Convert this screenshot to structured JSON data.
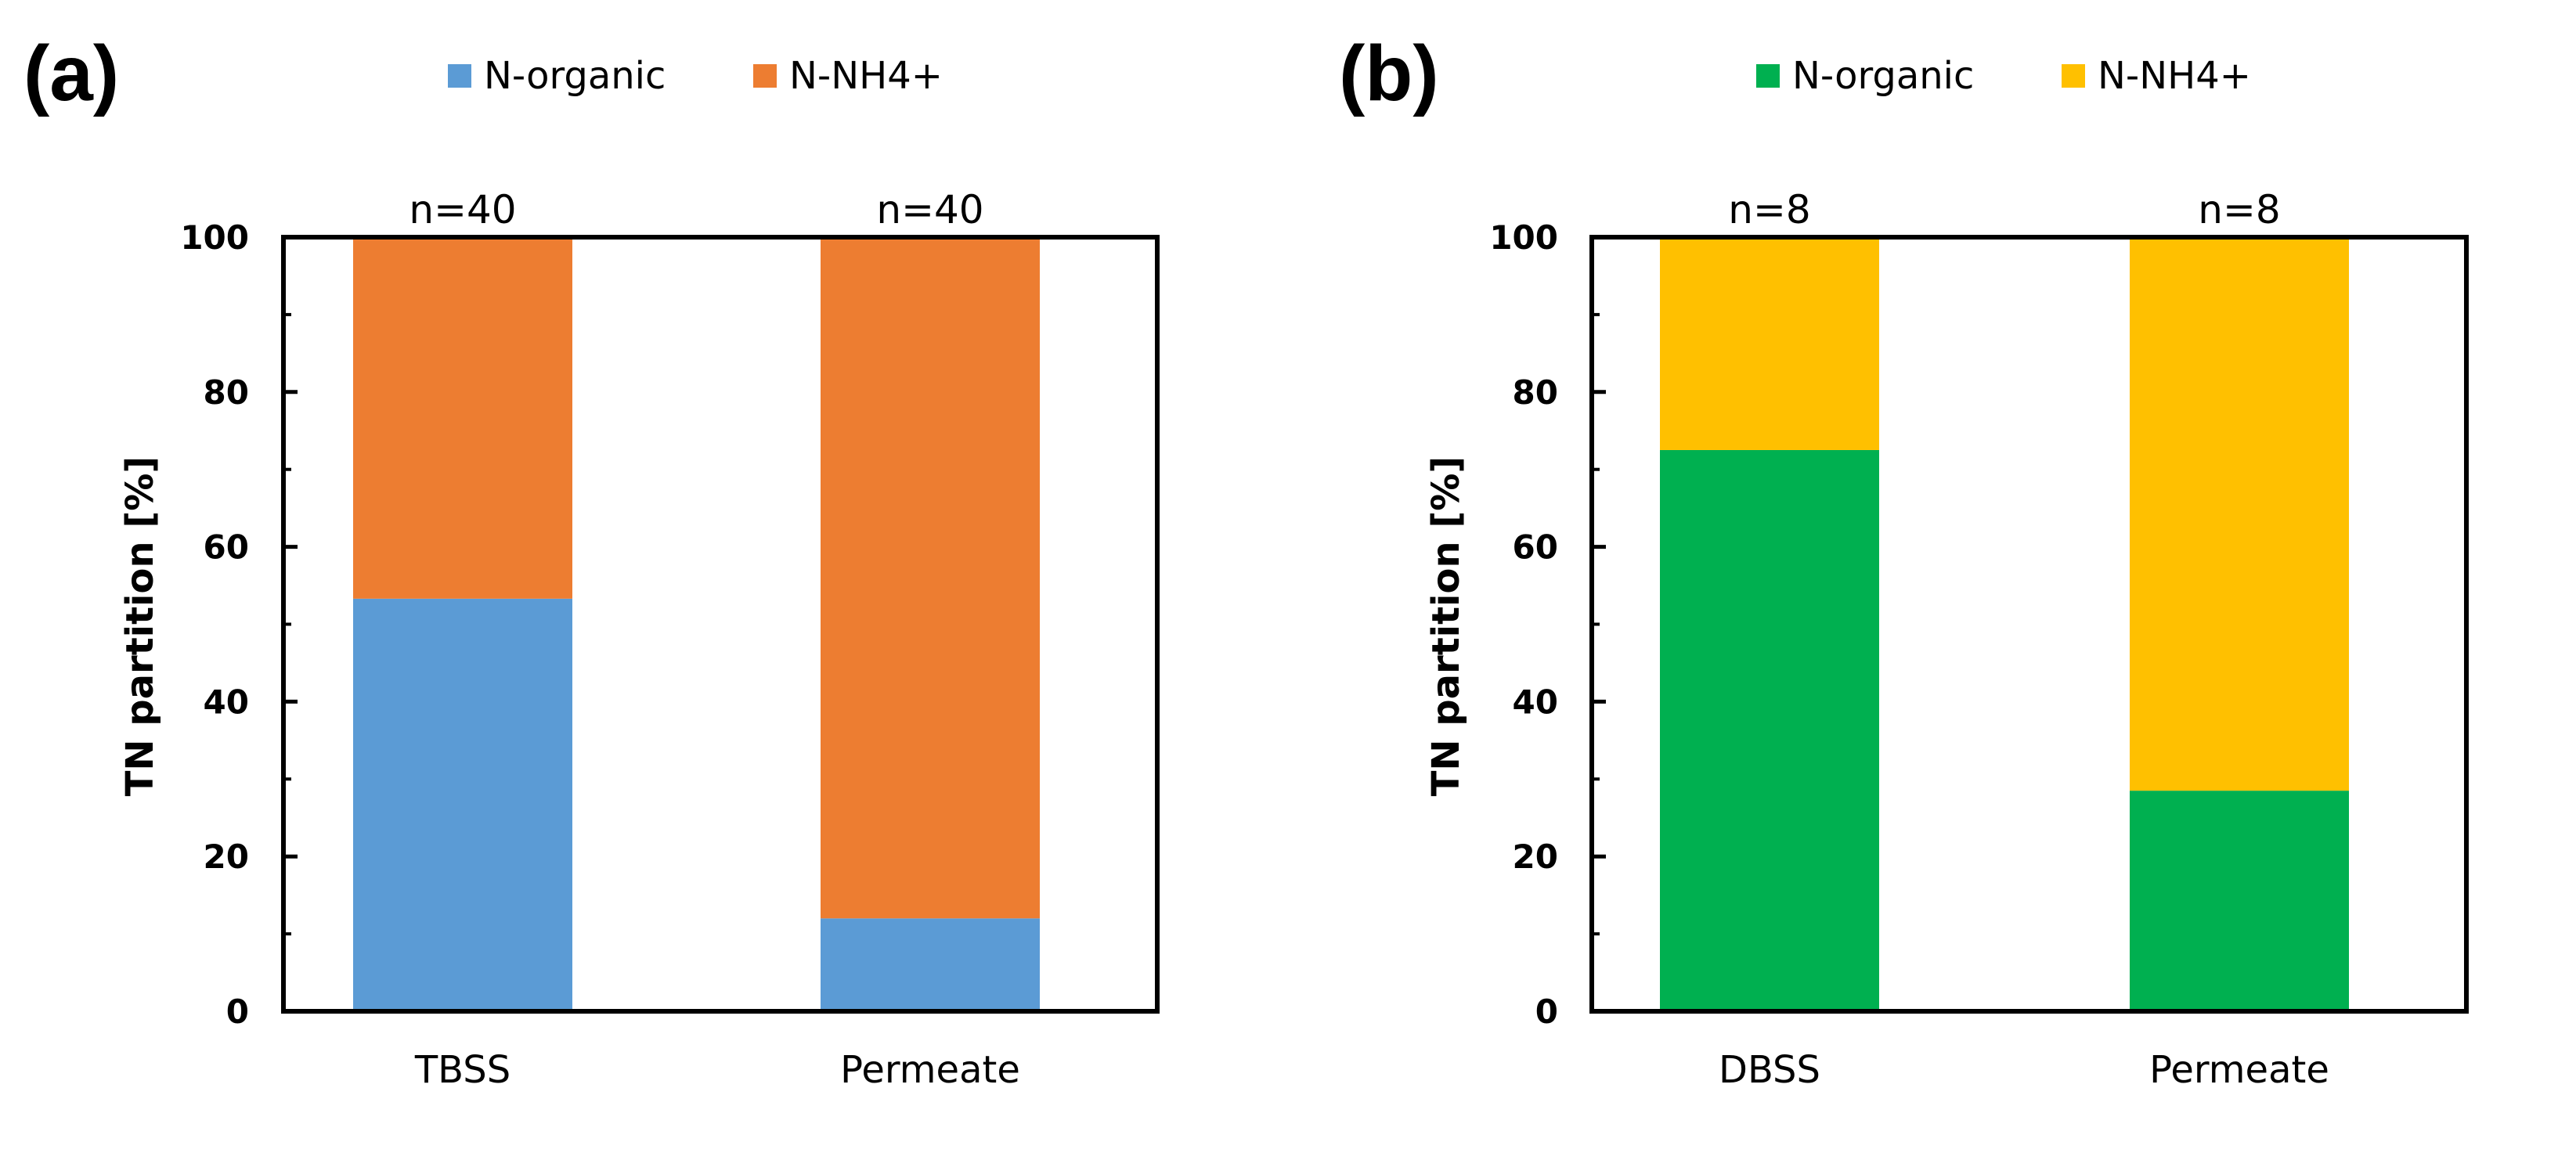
{
  "chart_data": [
    {
      "type": "bar",
      "stacked": true,
      "panel_label": "(a)",
      "categories": [
        "TBSS",
        "Permeate"
      ],
      "n_labels": [
        "n=40",
        "n=40"
      ],
      "series": [
        {
          "name": "N-organic",
          "values": [
            53.3,
            12
          ],
          "color": "#5b9bd5"
        },
        {
          "name": "N-NH4+",
          "values": [
            46.7,
            88
          ],
          "color": "#ed7d31"
        }
      ],
      "ylabel": "TN partition [%]",
      "ylim": [
        0,
        100
      ],
      "yticks": [
        "0",
        "20",
        "40",
        "60",
        "80",
        "100"
      ],
      "legend": "top"
    },
    {
      "type": "bar",
      "stacked": true,
      "panel_label": "(b)",
      "categories": [
        "DBSS",
        "Permeate"
      ],
      "n_labels": [
        "n=8",
        "n=8"
      ],
      "series": [
        {
          "name": "N-organic",
          "values": [
            72.5,
            28.5
          ],
          "color": "#00b050"
        },
        {
          "name": "N-NH4+",
          "values": [
            27.5,
            71.5
          ],
          "color": "#ffc000"
        }
      ],
      "ylabel": "TN partition [%]",
      "ylim": [
        0,
        100
      ],
      "yticks": [
        "0",
        "20",
        "40",
        "60",
        "80",
        "100"
      ],
      "legend": "top"
    }
  ]
}
